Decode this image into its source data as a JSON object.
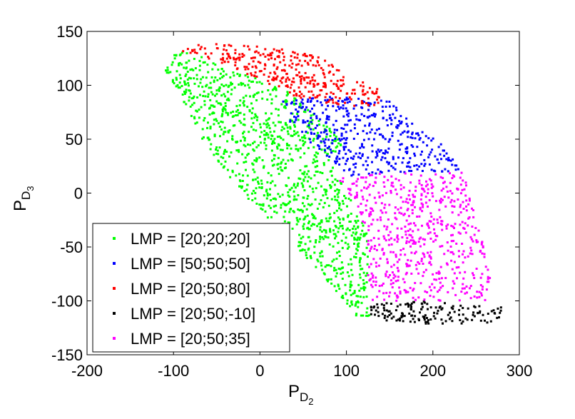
{
  "chart_data": {
    "type": "scatter",
    "title": "",
    "xlabel": {
      "main": "P",
      "sub1": "D",
      "sub2": "2"
    },
    "ylabel": {
      "main": "P",
      "sub1": "D",
      "sub2": "3"
    },
    "xlim": [
      -200,
      300
    ],
    "ylim": [
      -150,
      150
    ],
    "xticks": [
      -200,
      -100,
      0,
      100,
      200,
      300
    ],
    "yticks": [
      -150,
      -100,
      -50,
      0,
      50,
      100,
      150
    ],
    "grid": false,
    "legend_position": "bottom-left",
    "series": [
      {
        "name": "LMP = [20;20;20]",
        "color": "#00ff00",
        "regions": [
          {
            "n": 1100,
            "poly": [
              [
                -115,
                120
              ],
              [
                -85,
                135
              ],
              [
                -65,
                125
              ],
              [
                0,
                105
              ],
              [
                30,
                95
              ],
              [
                70,
                70
              ],
              [
                100,
                50
              ],
              [
                80,
                30
              ],
              [
                95,
                10
              ],
              [
                110,
                -10
              ],
              [
                125,
                -40
              ],
              [
                125,
                -80
              ],
              [
                130,
                -115
              ],
              [
                110,
                -115
              ],
              [
                80,
                -85
              ],
              [
                30,
                -40
              ],
              [
                -20,
                0
              ],
              [
                -60,
                40
              ],
              [
                -95,
                95
              ]
            ]
          }
        ]
      },
      {
        "name": "LMP = [50;50;50]",
        "color": "#0000ff",
        "regions": [
          {
            "n": 420,
            "poly": [
              [
                25,
                85
              ],
              [
                80,
                90
              ],
              [
                150,
                85
              ],
              [
                170,
                70
              ],
              [
                210,
                45
              ],
              [
                235,
                20
              ],
              [
                180,
                20
              ],
              [
                140,
                18
              ],
              [
                100,
                15
              ],
              [
                85,
                30
              ],
              [
                60,
                45
              ],
              [
                30,
                70
              ]
            ]
          }
        ]
      },
      {
        "name": "LMP = [20;50;80]",
        "color": "#ff0000",
        "regions": [
          {
            "n": 330,
            "poly": [
              [
                -90,
                132
              ],
              [
                -65,
                140
              ],
              [
                -25,
                137
              ],
              [
                25,
                135
              ],
              [
                70,
                128
              ],
              [
                100,
                110
              ],
              [
                140,
                95
              ],
              [
                140,
                80
              ],
              [
                100,
                80
              ],
              [
                60,
                85
              ],
              [
                30,
                92
              ],
              [
                0,
                105
              ],
              [
                -40,
                120
              ],
              [
                -70,
                125
              ]
            ]
          }
        ]
      },
      {
        "name": "LMP = [20;50;-10]",
        "color": "#000000",
        "regions": [
          {
            "n": 150,
            "poly": [
              [
                125,
                -103
              ],
              [
                180,
                -100
              ],
              [
                240,
                -103
              ],
              [
                280,
                -106
              ],
              [
                275,
                -120
              ],
              [
                200,
                -122
              ],
              [
                140,
                -118
              ],
              [
                125,
                -112
              ]
            ]
          }
        ]
      },
      {
        "name": "LMP = [20;50;35]",
        "color": "#ff00ff",
        "regions": [
          {
            "n": 600,
            "poly": [
              [
                85,
                15
              ],
              [
                140,
                18
              ],
              [
                235,
                20
              ],
              [
                245,
                -10
              ],
              [
                260,
                -50
              ],
              [
                270,
                -90
              ],
              [
                260,
                -100
              ],
              [
                200,
                -100
              ],
              [
                140,
                -100
              ],
              [
                125,
                -102
              ],
              [
                125,
                -40
              ],
              [
                110,
                -10
              ],
              [
                95,
                10
              ]
            ]
          }
        ]
      }
    ]
  }
}
